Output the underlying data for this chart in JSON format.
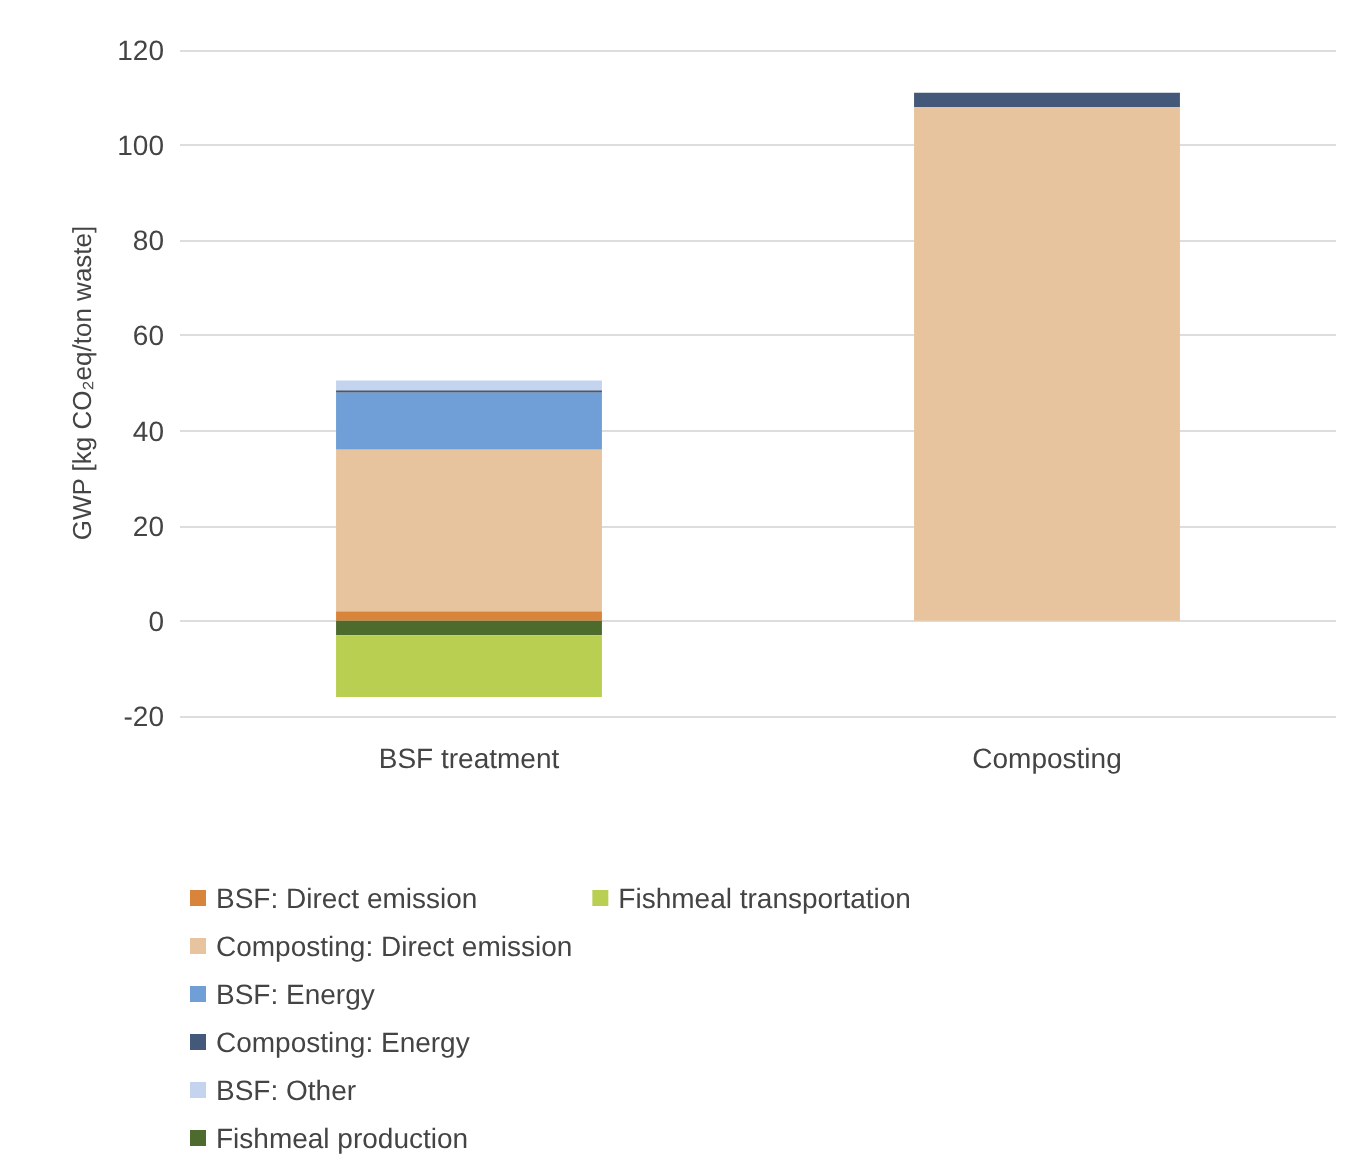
{
  "chart_data": {
    "type": "bar",
    "stacked": true,
    "ylabel": "GWP [kg CO₂eq/ton waste]",
    "categories": [
      "BSF treatment",
      "Composting"
    ],
    "series": [
      {
        "name": "BSF: Direct emission",
        "color": "#d9843b",
        "values": [
          2,
          0
        ]
      },
      {
        "name": "Composting: Direct emission",
        "color": "#e8c49e",
        "values": [
          34,
          108
        ]
      },
      {
        "name": "BSF: Energy",
        "color": "#6f9fd6",
        "values": [
          12,
          0
        ]
      },
      {
        "name": "Composting: Energy",
        "color": "#44597a",
        "values": [
          0.5,
          3
        ]
      },
      {
        "name": "BSF: Other",
        "color": "#c4d4ee",
        "values": [
          2,
          0
        ]
      },
      {
        "name": "Fishmeal production",
        "color": "#4e6b2e",
        "values": [
          -3,
          0
        ]
      },
      {
        "name": "Fishmeal transportation",
        "color": "#b8cf52",
        "values": [
          -13,
          0
        ]
      }
    ],
    "ylim": [
      -20,
      120
    ],
    "yticks": [
      -20,
      0,
      20,
      40,
      60,
      80,
      100,
      120
    ],
    "grid": "y",
    "legend": "bottom"
  }
}
